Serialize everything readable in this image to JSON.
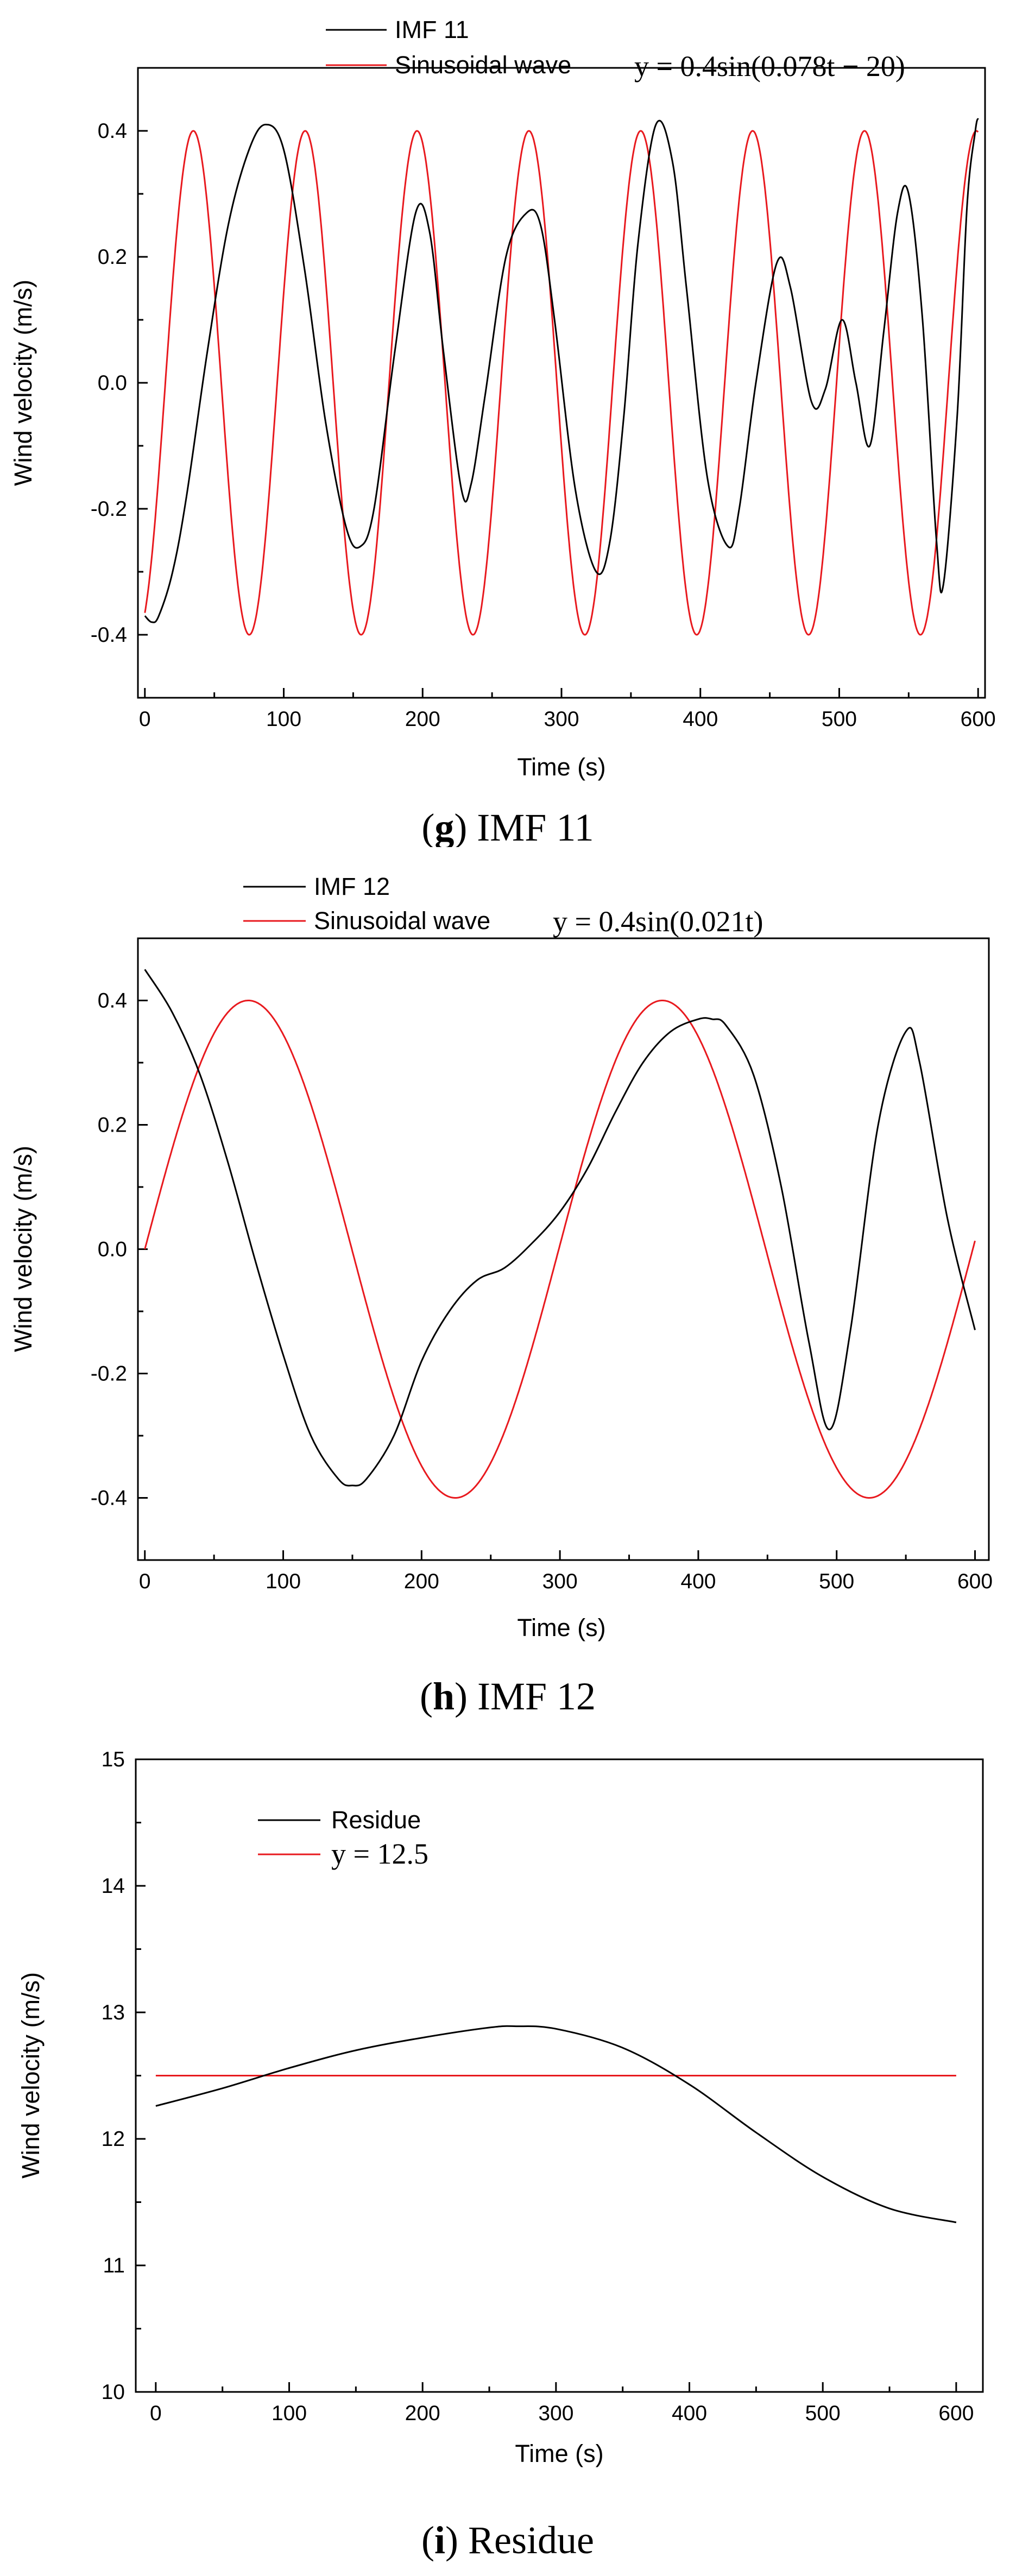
{
  "chart_data": [
    {
      "type": "line",
      "panel": "g",
      "caption": {
        "open": "(",
        "letter": "g",
        "close": ")",
        "text": " IMF 11"
      },
      "xlabel": "Time (s)",
      "ylabel": "Wind velocity (m/s)",
      "xlim": [
        -5,
        605
      ],
      "ylim": [
        -0.5,
        0.5
      ],
      "xticks": [
        0,
        100,
        200,
        300,
        400,
        500,
        600
      ],
      "xtick_labels": [
        "0",
        "100",
        "200",
        "300",
        "400",
        "500",
        "600"
      ],
      "yticks": [
        -0.4,
        -0.2,
        0.0,
        0.2,
        0.4
      ],
      "ytick_labels": [
        "-0.4",
        "-0.2",
        "0.0",
        "0.2",
        "0.4"
      ],
      "legend_position": "top-center",
      "series": [
        {
          "name": "IMF 11",
          "color": "#000000",
          "x": [
            0,
            5,
            10,
            20,
            30,
            45,
            60,
            75,
            87,
            100,
            115,
            130,
            145,
            155,
            165,
            180,
            195,
            205,
            215,
            228,
            235,
            245,
            260,
            275,
            285,
            295,
            310,
            325,
            335,
            345,
            355,
            368,
            380,
            390,
            405,
            420,
            428,
            440,
            455,
            465,
            480,
            490,
            502,
            512,
            522,
            532,
            542,
            550,
            560,
            570,
            575,
            585,
            592,
            598,
            600
          ],
          "values": [
            -0.37,
            -0.38,
            -0.37,
            -0.3,
            -0.18,
            0.05,
            0.25,
            0.37,
            0.41,
            0.37,
            0.18,
            -0.06,
            -0.23,
            -0.26,
            -0.2,
            0.05,
            0.27,
            0.24,
            0.05,
            -0.17,
            -0.16,
            -0.02,
            0.2,
            0.27,
            0.25,
            0.1,
            -0.17,
            -0.3,
            -0.25,
            -0.05,
            0.22,
            0.41,
            0.35,
            0.15,
            -0.15,
            -0.26,
            -0.2,
            0.0,
            0.19,
            0.15,
            -0.03,
            -0.01,
            0.1,
            0.0,
            -0.1,
            0.08,
            0.27,
            0.3,
            0.1,
            -0.25,
            -0.32,
            -0.05,
            0.28,
            0.4,
            0.42
          ]
        },
        {
          "name": "Sinusoidal wave",
          "color": "#e8191e",
          "equation": "y = 0.4sin(0.078t − 20)",
          "amplitude": 0.4,
          "omega": 0.078,
          "phase": -20,
          "offset": 0,
          "x_range": [
            0,
            600
          ]
        }
      ]
    },
    {
      "type": "line",
      "panel": "h",
      "caption": {
        "open": "(",
        "letter": "h",
        "close": ")",
        "text": " IMF 12"
      },
      "xlabel": "Time (s)",
      "ylabel": "Wind velocity (m/s)",
      "xlim": [
        -5,
        610
      ],
      "ylim": [
        -0.5,
        0.5
      ],
      "xticks": [
        0,
        100,
        200,
        300,
        400,
        500,
        600
      ],
      "xtick_labels": [
        "0",
        "100",
        "200",
        "300",
        "400",
        "500",
        "600"
      ],
      "yticks": [
        -0.4,
        -0.2,
        0.0,
        0.2,
        0.4
      ],
      "ytick_labels": [
        "-0.4",
        "-0.2",
        "0.0",
        "0.2",
        "0.4"
      ],
      "legend_position": "top-center",
      "series": [
        {
          "name": "IMF 12",
          "color": "#000000",
          "x": [
            0,
            20,
            40,
            60,
            80,
            100,
            120,
            140,
            150,
            160,
            180,
            200,
            220,
            240,
            260,
            280,
            300,
            320,
            340,
            360,
            380,
            400,
            410,
            420,
            440,
            460,
            480,
            495,
            510,
            530,
            550,
            560,
            580,
            600
          ],
          "values": [
            0.45,
            0.38,
            0.28,
            0.14,
            -0.02,
            -0.17,
            -0.3,
            -0.37,
            -0.38,
            -0.37,
            -0.3,
            -0.18,
            -0.1,
            -0.05,
            -0.03,
            0.01,
            0.06,
            0.13,
            0.22,
            0.3,
            0.35,
            0.37,
            0.37,
            0.36,
            0.28,
            0.1,
            -0.15,
            -0.29,
            -0.13,
            0.2,
            0.35,
            0.3,
            0.05,
            -0.13
          ]
        },
        {
          "name": "Sinusoidal wave",
          "color": "#e8191e",
          "equation": "y = 0.4sin(0.021t)",
          "amplitude": 0.4,
          "omega": 0.021,
          "phase": 0,
          "offset": 0,
          "x_range": [
            0,
            600
          ]
        }
      ]
    },
    {
      "type": "line",
      "panel": "i",
      "caption": {
        "open": "(",
        "letter": "i",
        "close": ")",
        "text": " Residue"
      },
      "xlabel": "Time (s)",
      "ylabel": "Wind velocity (m/s)",
      "xlim": [
        -15,
        620
      ],
      "ylim": [
        10,
        15
      ],
      "xticks": [
        0,
        100,
        200,
        300,
        400,
        500,
        600
      ],
      "xtick_labels": [
        "0",
        "100",
        "200",
        "300",
        "400",
        "500",
        "600"
      ],
      "yticks": [
        10,
        11,
        12,
        13,
        14,
        15
      ],
      "ytick_labels": [
        "10",
        "11",
        "12",
        "13",
        "14",
        "15"
      ],
      "legend_position": "top-left",
      "series": [
        {
          "name": "Residue",
          "color": "#000000",
          "x": [
            0,
            50,
            100,
            150,
            200,
            250,
            270,
            300,
            350,
            400,
            450,
            500,
            550,
            600
          ],
          "values": [
            12.26,
            12.4,
            12.56,
            12.7,
            12.8,
            12.88,
            12.89,
            12.87,
            12.72,
            12.43,
            12.05,
            11.7,
            11.45,
            11.34
          ]
        },
        {
          "name": "y = 12.5",
          "color": "#e8191e",
          "equation": "y = 12.5",
          "amplitude": 0,
          "omega": 0,
          "phase": 0,
          "offset": 12.5,
          "x_range": [
            0,
            600
          ]
        }
      ]
    }
  ]
}
